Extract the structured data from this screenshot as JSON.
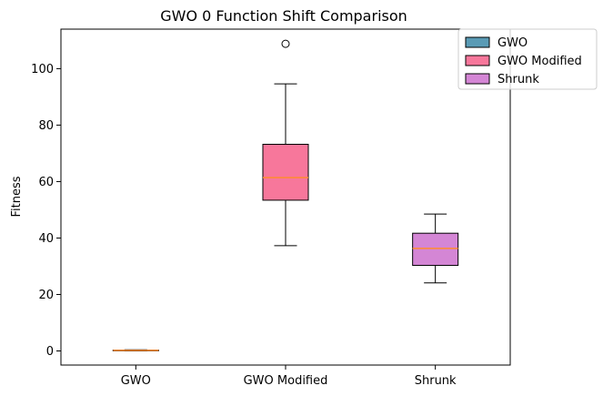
{
  "chart_data": {
    "type": "box",
    "title": "GWO 0 Function Shift Comparison",
    "xlabel": "",
    "ylabel": "Fitness",
    "ylim": [
      -5,
      114
    ],
    "yticks": [
      0,
      20,
      40,
      60,
      80,
      100
    ],
    "categories": [
      "GWO",
      "GWO Modified",
      "Shrunk"
    ],
    "series": [
      {
        "name": "GWO",
        "color": "#5a9bb5",
        "whisker_low": 0.05,
        "q1": 0.1,
        "median": 0.2,
        "q3": 0.3,
        "whisker_high": 0.4,
        "outliers": []
      },
      {
        "name": "GWO Modified",
        "color": "#f7779b",
        "whisker_low": 37.3,
        "q1": 53.4,
        "median": 61.4,
        "q3": 73.2,
        "whisker_high": 94.6,
        "outliers": [
          108.8
        ]
      },
      {
        "name": "Shrunk",
        "color": "#d486d5",
        "whisker_low": 24.1,
        "q1": 30.3,
        "median": 36.3,
        "q3": 41.7,
        "whisker_high": 48.5,
        "outliers": []
      }
    ],
    "median_color": "#ff8c2e",
    "grid": false,
    "legend_position": "top-right"
  }
}
